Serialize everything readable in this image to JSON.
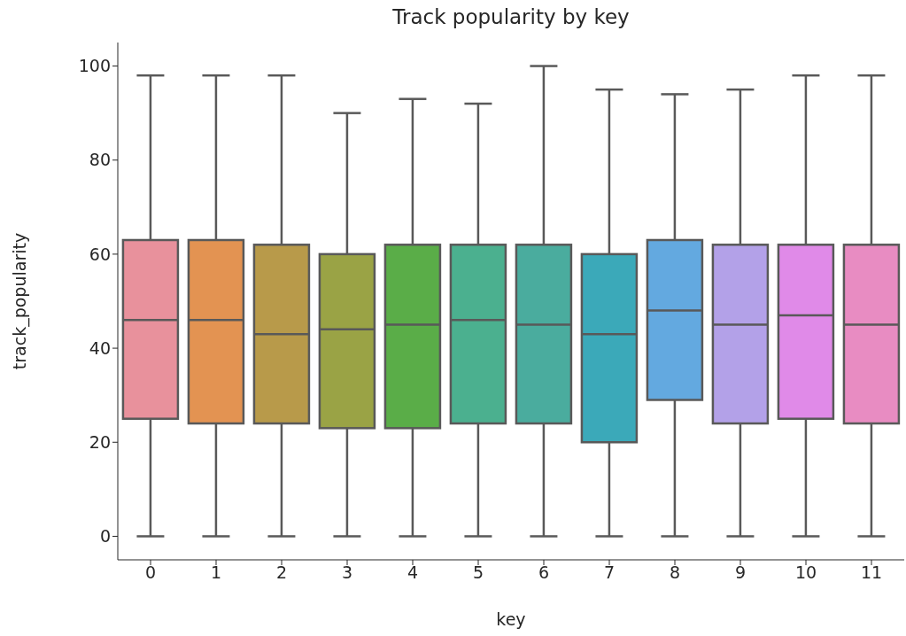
{
  "chart_data": {
    "type": "box",
    "title": "Track popularity by key",
    "xlabel": "key",
    "ylabel": "track_popularity",
    "categories": [
      "0",
      "1",
      "2",
      "3",
      "4",
      "5",
      "6",
      "7",
      "8",
      "9",
      "10",
      "11"
    ],
    "colors": [
      "#e8919c",
      "#e39352",
      "#b89a4a",
      "#9aa345",
      "#5aad48",
      "#4bb08f",
      "#4aac9e",
      "#3ba9b9",
      "#63a9e0",
      "#b3a1e8",
      "#e08ae8",
      "#e88cc2"
    ],
    "boxes": [
      {
        "low": 0,
        "q1": 25,
        "median": 46,
        "q3": 63,
        "high": 98
      },
      {
        "low": 0,
        "q1": 24,
        "median": 46,
        "q3": 63,
        "high": 98
      },
      {
        "low": 0,
        "q1": 24,
        "median": 43,
        "q3": 62,
        "high": 98
      },
      {
        "low": 0,
        "q1": 23,
        "median": 44,
        "q3": 60,
        "high": 90
      },
      {
        "low": 0,
        "q1": 23,
        "median": 45,
        "q3": 62,
        "high": 93
      },
      {
        "low": 0,
        "q1": 24,
        "median": 46,
        "q3": 62,
        "high": 92
      },
      {
        "low": 0,
        "q1": 24,
        "median": 45,
        "q3": 62,
        "high": 100
      },
      {
        "low": 0,
        "q1": 20,
        "median": 43,
        "q3": 60,
        "high": 95
      },
      {
        "low": 0,
        "q1": 29,
        "median": 48,
        "q3": 63,
        "high": 94
      },
      {
        "low": 0,
        "q1": 24,
        "median": 45,
        "q3": 62,
        "high": 95
      },
      {
        "low": 0,
        "q1": 25,
        "median": 47,
        "q3": 62,
        "high": 98
      },
      {
        "low": 0,
        "q1": 24,
        "median": 45,
        "q3": 62,
        "high": 98
      }
    ],
    "ylim": [
      -5,
      105
    ],
    "yticks": [
      0,
      20,
      40,
      60,
      80,
      100
    ]
  }
}
